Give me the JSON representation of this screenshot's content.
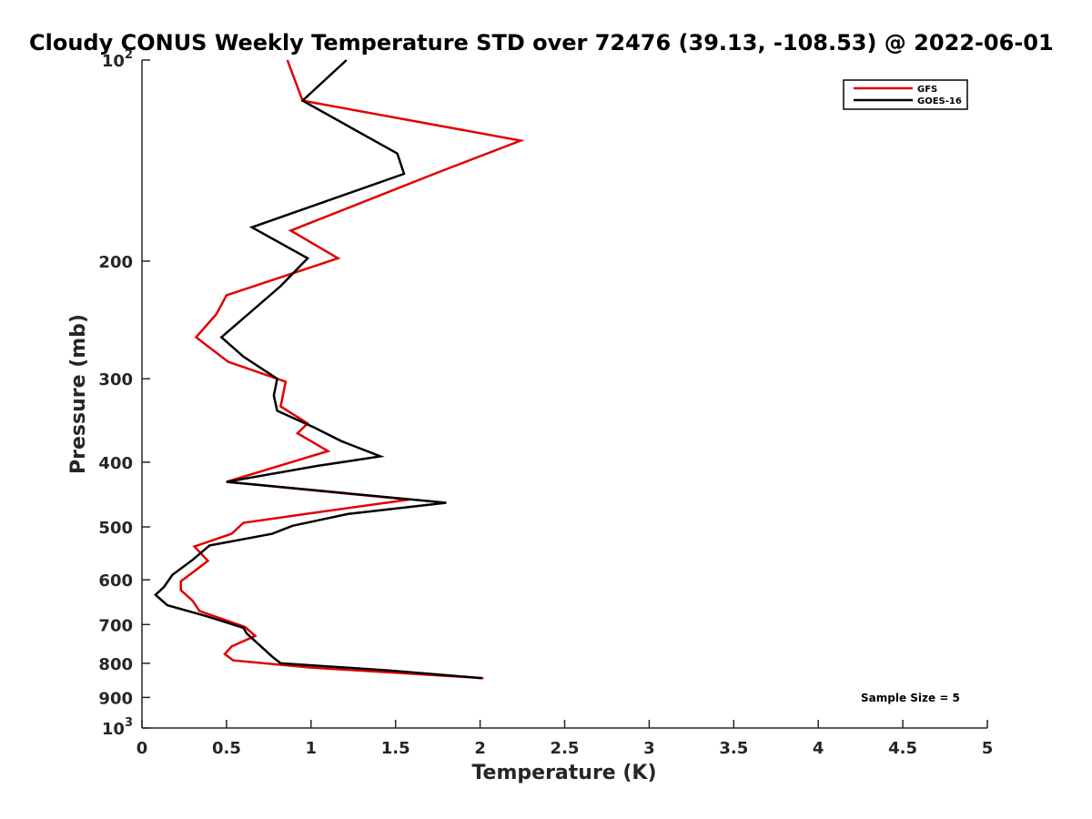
{
  "chart_data": {
    "type": "line",
    "title": "Cloudy CONUS Weekly Temperature STD over 72476 (39.13, -108.53) @ 2022-06-01",
    "xlabel": "Temperature (K)",
    "ylabel": "Pressure (mb)",
    "xlim": [
      0,
      5
    ],
    "ylim": [
      100,
      1000
    ],
    "y_scale": "log",
    "y_reversed": true,
    "x_ticks": [
      "0",
      "0.5",
      "1",
      "1.5",
      "2",
      "2.5",
      "3",
      "3.5",
      "4",
      "4.5",
      "5"
    ],
    "y_ticks": [
      {
        "value": 100,
        "base": "10",
        "exp": "2"
      },
      {
        "value": 200,
        "label": "200"
      },
      {
        "value": 300,
        "label": "300"
      },
      {
        "value": 400,
        "label": "400"
      },
      {
        "value": 500,
        "label": "500"
      },
      {
        "value": 600,
        "label": "600"
      },
      {
        "value": 700,
        "label": "700"
      },
      {
        "value": 800,
        "label": "800"
      },
      {
        "value": 900,
        "label": "900"
      },
      {
        "value": 1000,
        "base": "10",
        "exp": "3"
      }
    ],
    "legend_position": "top-right",
    "annotation": "Sample Size = 5",
    "series": [
      {
        "name": "GFS",
        "color": "#e00000",
        "points": [
          [
            0.86,
            100
          ],
          [
            0.95,
            115
          ],
          [
            2.24,
            132
          ],
          [
            1.73,
            148
          ],
          [
            0.88,
            180
          ],
          [
            1.16,
            198
          ],
          [
            0.5,
            225
          ],
          [
            0.44,
            240
          ],
          [
            0.32,
            260
          ],
          [
            0.51,
            283
          ],
          [
            0.85,
            303
          ],
          [
            0.82,
            330
          ],
          [
            0.98,
            350
          ],
          [
            0.92,
            362
          ],
          [
            1.1,
            385
          ],
          [
            0.5,
            428
          ],
          [
            1.58,
            455
          ],
          [
            0.97,
            478
          ],
          [
            0.6,
            493
          ],
          [
            0.53,
            512
          ],
          [
            0.31,
            535
          ],
          [
            0.39,
            562
          ],
          [
            0.3,
            585
          ],
          [
            0.23,
            603
          ],
          [
            0.23,
            622
          ],
          [
            0.3,
            645
          ],
          [
            0.34,
            668
          ],
          [
            0.61,
            706
          ],
          [
            0.67,
            728
          ],
          [
            0.53,
            755
          ],
          [
            0.49,
            775
          ],
          [
            0.54,
            792
          ],
          [
            1.0,
            812
          ],
          [
            2.02,
            842
          ]
        ]
      },
      {
        "name": "GOES-16",
        "color": "#000000",
        "points": [
          [
            1.21,
            100
          ],
          [
            0.95,
            115
          ],
          [
            1.51,
            138
          ],
          [
            1.55,
            148
          ],
          [
            0.65,
            178
          ],
          [
            0.98,
            198
          ],
          [
            0.82,
            218
          ],
          [
            0.47,
            260
          ],
          [
            0.6,
            278
          ],
          [
            0.8,
            300
          ],
          [
            0.78,
            318
          ],
          [
            0.8,
            335
          ],
          [
            1.02,
            355
          ],
          [
            1.18,
            372
          ],
          [
            1.41,
            392
          ],
          [
            1.04,
            405
          ],
          [
            0.5,
            428
          ],
          [
            1.8,
            460
          ],
          [
            1.22,
            478
          ],
          [
            0.89,
            498
          ],
          [
            0.77,
            512
          ],
          [
            0.4,
            533
          ],
          [
            0.3,
            560
          ],
          [
            0.18,
            590
          ],
          [
            0.13,
            615
          ],
          [
            0.08,
            632
          ],
          [
            0.15,
            655
          ],
          [
            0.38,
            680
          ],
          [
            0.6,
            708
          ],
          [
            0.62,
            722
          ],
          [
            0.77,
            782
          ],
          [
            0.82,
            800
          ],
          [
            1.46,
            820
          ],
          [
            2.01,
            842
          ]
        ]
      }
    ]
  }
}
